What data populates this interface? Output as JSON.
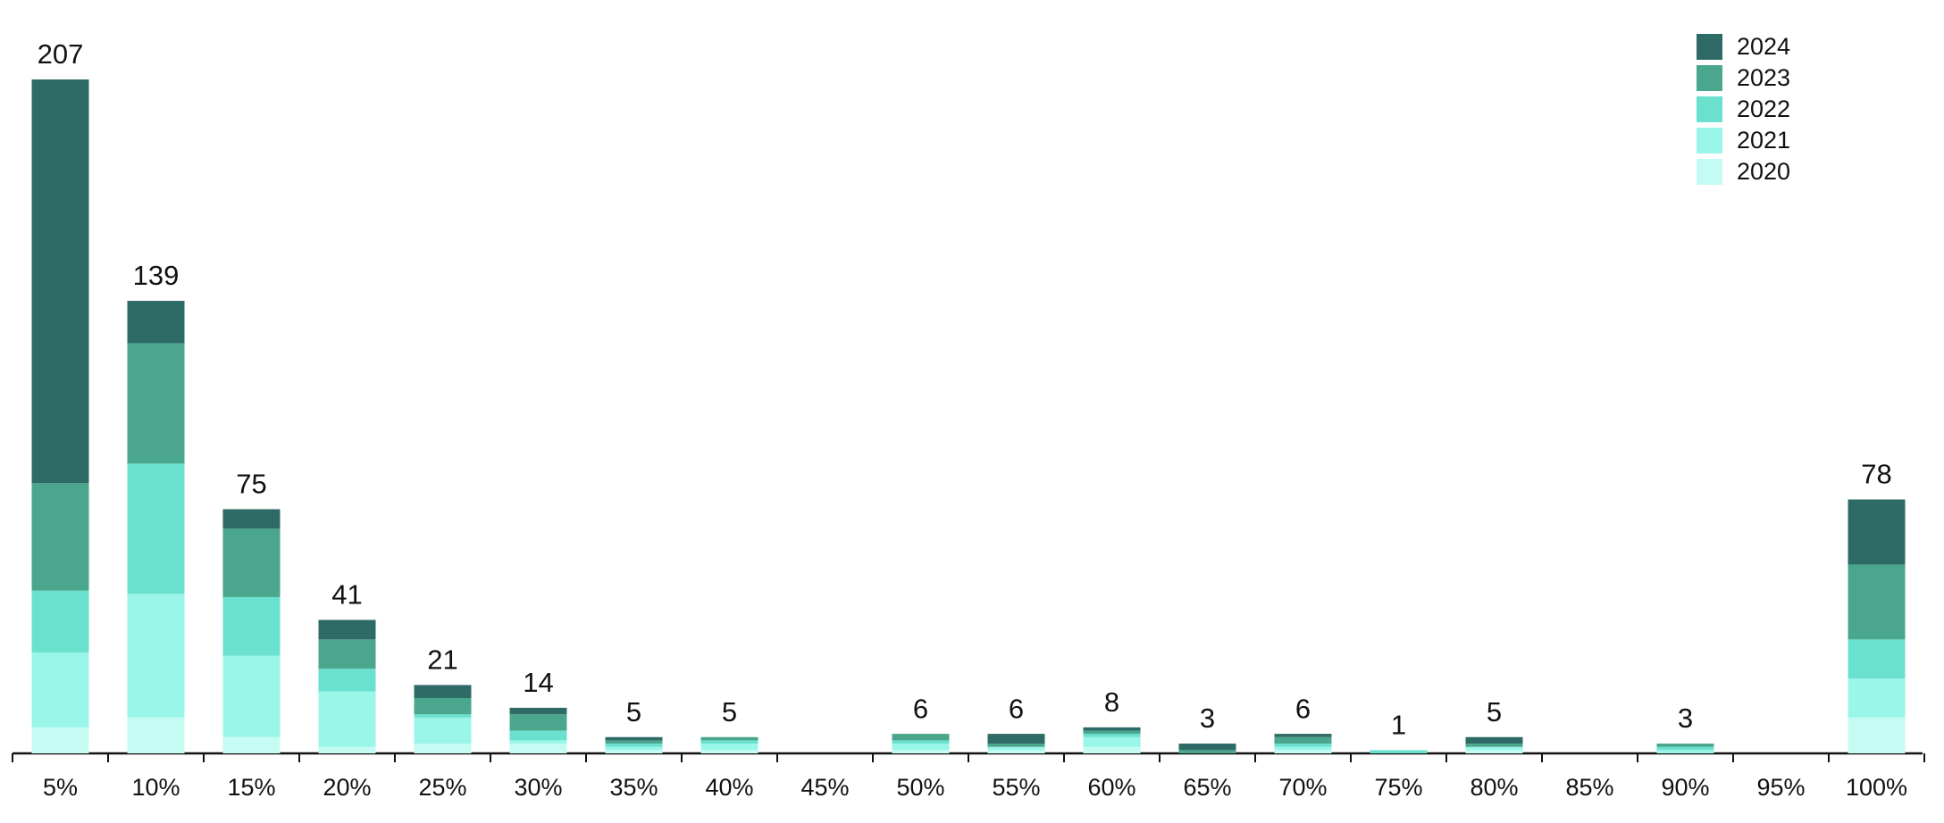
{
  "chart_data": {
    "type": "stacked-bar",
    "categories": [
      "5%",
      "10%",
      "15%",
      "20%",
      "25%",
      "30%",
      "35%",
      "40%",
      "45%",
      "50%",
      "55%",
      "60%",
      "65%",
      "70%",
      "75%",
      "80%",
      "85%",
      "90%",
      "95%",
      "100%"
    ],
    "series": [
      {
        "name": "2020",
        "color": "#c4fbf3",
        "values": [
          8,
          11,
          5,
          2,
          3,
          3,
          1,
          1,
          0,
          1,
          1,
          2,
          0,
          1,
          0,
          1,
          0,
          0,
          0,
          11
        ]
      },
      {
        "name": "2021",
        "color": "#9af6e8",
        "values": [
          23,
          38,
          25,
          17,
          8,
          1,
          1,
          2,
          0,
          2,
          1,
          3,
          0,
          1,
          0,
          1,
          0,
          1,
          0,
          12
        ]
      },
      {
        "name": "2022",
        "color": "#6ae0cf",
        "values": [
          19,
          40,
          18,
          7,
          1,
          3,
          1,
          1,
          0,
          1,
          0,
          1,
          0,
          1,
          1,
          0,
          0,
          1,
          0,
          12
        ]
      },
      {
        "name": "2023",
        "color": "#4aa68c",
        "values": [
          33,
          37,
          21,
          9,
          5,
          5,
          1,
          1,
          0,
          2,
          1,
          1,
          1,
          2,
          0,
          1,
          0,
          1,
          0,
          23
        ]
      },
      {
        "name": "2024",
        "color": "#2e6b66",
        "values": [
          124,
          13,
          6,
          6,
          4,
          2,
          1,
          0,
          0,
          0,
          3,
          1,
          2,
          1,
          0,
          2,
          0,
          0,
          0,
          20
        ]
      }
    ],
    "totals": [
      207,
      139,
      75,
      41,
      21,
      14,
      5,
      5,
      null,
      6,
      6,
      8,
      3,
      6,
      1,
      5,
      null,
      3,
      null,
      78
    ],
    "legend": "top-right"
  }
}
